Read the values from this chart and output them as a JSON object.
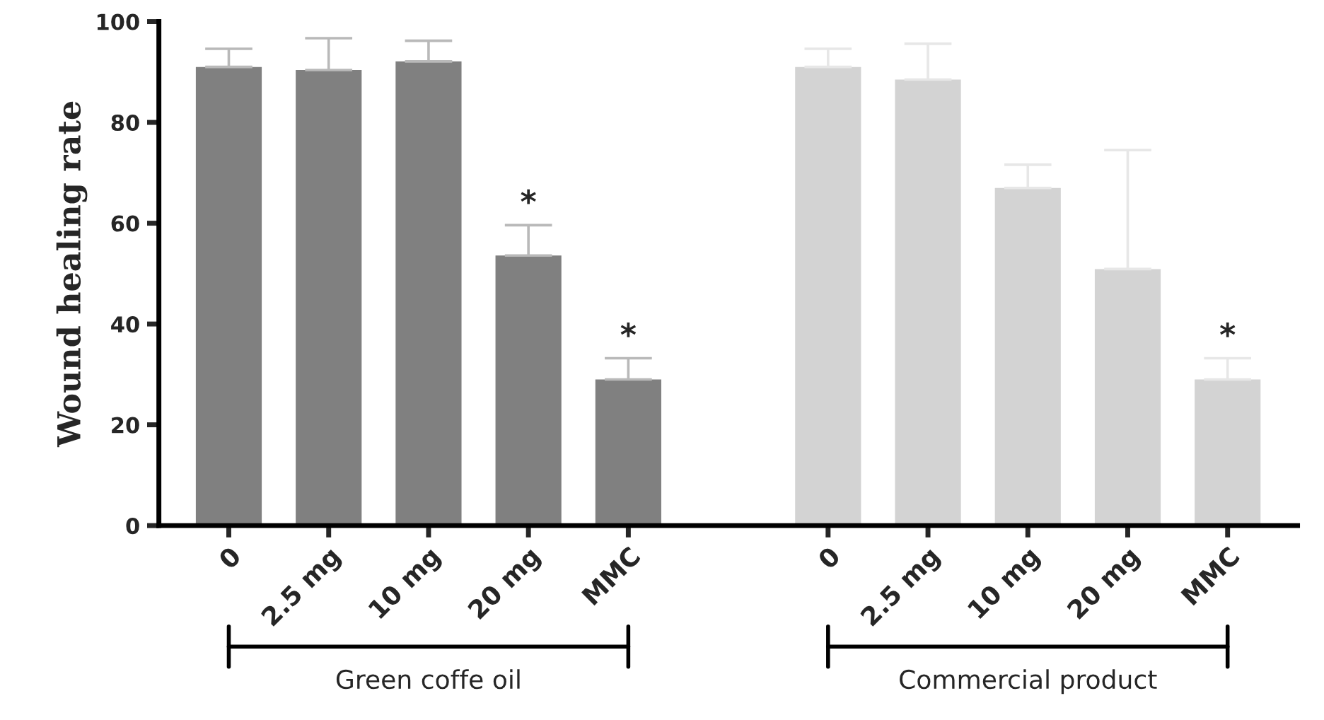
{
  "chart_data": {
    "type": "bar",
    "ylabel": "Wound healing rate",
    "categories": [
      "0",
      "2.5 mg",
      "10 mg",
      "20 mg",
      "MMC",
      null,
      "0",
      "2.5 mg",
      "10 mg",
      "20 mg",
      "MMC"
    ],
    "values": [
      91,
      90.4,
      92.1,
      53.6,
      29.0,
      null,
      91,
      88.5,
      67.0,
      50.9,
      29.0
    ],
    "errors": [
      [
        91,
        94.6
      ],
      [
        90.4,
        96.7
      ],
      [
        92.1,
        96.2
      ],
      [
        53.6,
        59.6
      ],
      [
        29.0,
        33.2
      ],
      null,
      [
        91,
        94.6
      ],
      [
        88.5,
        95.6
      ],
      [
        67.0,
        71.6
      ],
      [
        50.9,
        74.5
      ],
      [
        29.0,
        33.2
      ]
    ],
    "colors": [
      "#808080",
      "#808080",
      "#808080",
      "#808080",
      "#808080",
      "#ffffff",
      "#d3d3d3",
      "#d3d3d3",
      "#d3d3d3",
      "#d3d3d3",
      "#d3d3d3"
    ],
    "value_labels": [
      null,
      null,
      null,
      "*",
      "*",
      null,
      null,
      null,
      null,
      null,
      "*"
    ],
    "annotations": [
      "Green coffe oil",
      "Commercial product"
    ],
    "ylim": [
      0,
      100
    ],
    "yticks": [
      0,
      20,
      40,
      60,
      80,
      100
    ],
    "grid": false,
    "legend": false
  }
}
